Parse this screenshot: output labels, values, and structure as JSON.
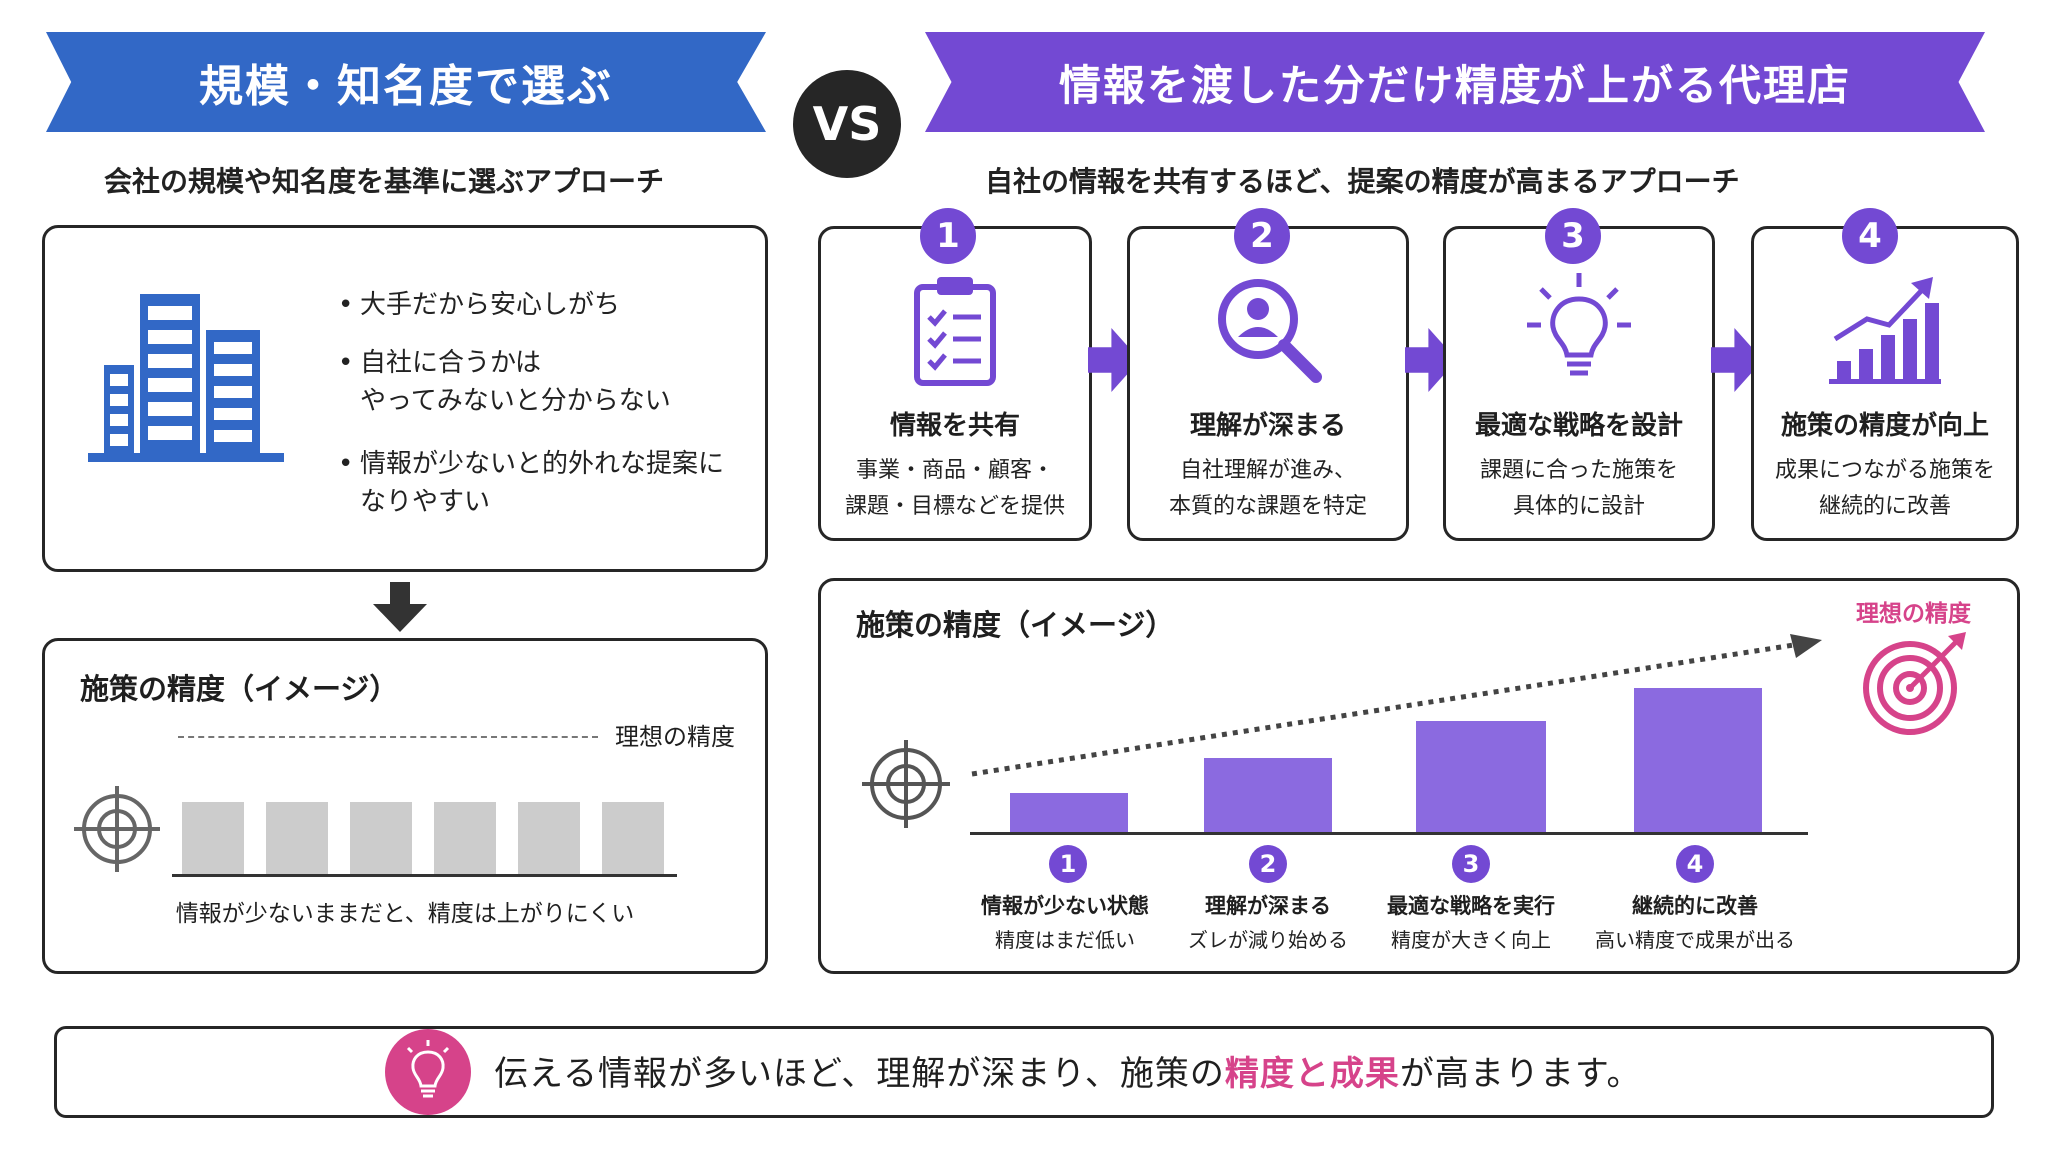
{
  "left": {
    "banner": "規模・知名度で選ぶ",
    "subtitle": "会社の規模や知名度を基準に選ぶアプローチ",
    "bullets": [
      {
        "line1": "大手だから安心しがち",
        "line2": ""
      },
      {
        "line1": "自社に合うかは",
        "line2": "やってみないと分からない"
      },
      {
        "line1": "情報が少ないと的外れな提案に",
        "line2": "なりやすい"
      }
    ],
    "chart": {
      "title": "施策の精度（イメージ）",
      "ideal_label": "理想の精度",
      "caption": "情報が少ないままだと、精度は上がりにくい"
    }
  },
  "vs_label": "VS",
  "right": {
    "banner": "情報を渡した分だけ精度が上がる代理店",
    "subtitle": "自社の情報を共有するほど、提案の精度が高まるアプローチ",
    "steps": [
      {
        "num": "1",
        "title": "情報を共有",
        "desc1": "事業・商品・顧客・",
        "desc2": "課題・目標などを提供",
        "icon": "clipboard-checklist-icon"
      },
      {
        "num": "2",
        "title": "理解が深まる",
        "desc1": "自社理解が進み、",
        "desc2": "本質的な課題を特定",
        "icon": "magnifier-user-icon"
      },
      {
        "num": "3",
        "title": "最適な戦略を設計",
        "desc1": "課題に合った施策を",
        "desc2": "具体的に設計",
        "icon": "lightbulb-icon"
      },
      {
        "num": "4",
        "title": "施策の精度が向上",
        "desc1": "成果につながる施策を",
        "desc2": "継続的に改善",
        "icon": "growth-chart-icon"
      }
    ],
    "chart": {
      "title": "施策の精度（イメージ）",
      "ideal_label": "理想の精度",
      "stages": [
        {
          "num": "1",
          "label": "情報が少ない状態",
          "sub": "精度はまだ低い"
        },
        {
          "num": "2",
          "label": "理解が深まる",
          "sub": "ズレが減り始める"
        },
        {
          "num": "3",
          "label": "最適な戦略を実行",
          "sub": "精度が大きく向上"
        },
        {
          "num": "4",
          "label": "継続的に改善",
          "sub": "高い精度で成果が出る"
        }
      ]
    }
  },
  "footer": {
    "part1": "伝える情報が多いほど、理解が深まり、施策の",
    "highlight": "精度と成果",
    "part2": "が高まります。"
  },
  "colors": {
    "blue": "#3268c6",
    "purple": "#7349d3",
    "bar_purple": "#8b6ae0",
    "pink": "#d6438a",
    "gray_bar": "#cccccc",
    "dark": "#262626"
  }
}
